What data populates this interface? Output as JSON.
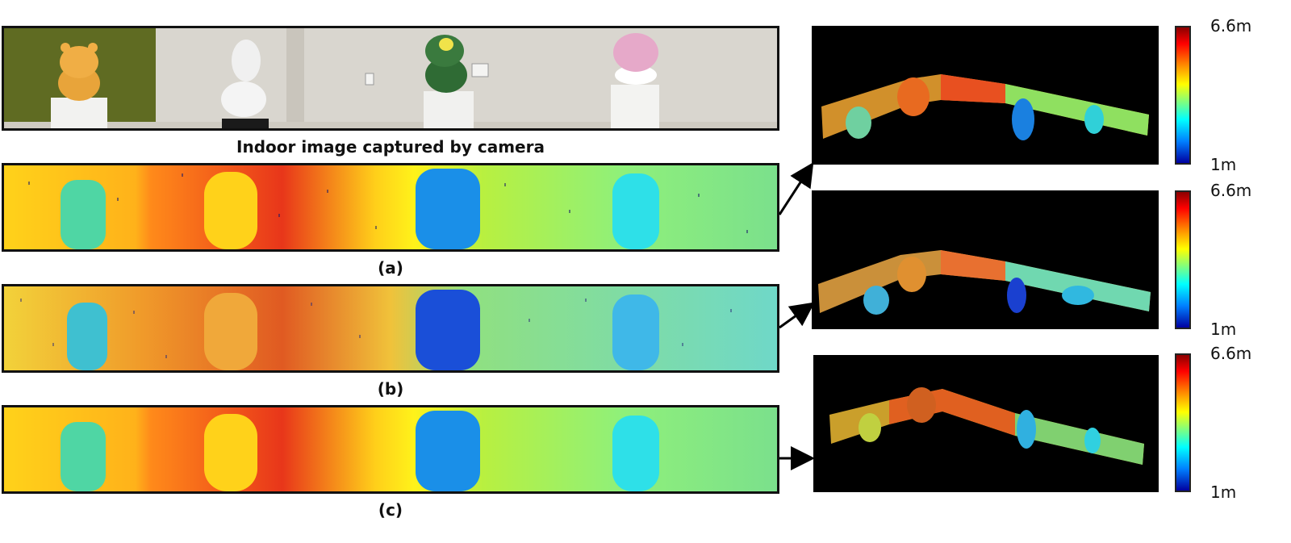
{
  "camera_caption": "Indoor image captured by camera",
  "panels": [
    {
      "id": "a",
      "label": "(a)"
    },
    {
      "id": "b",
      "label": "(b)"
    },
    {
      "id": "c",
      "label": "(c)"
    }
  ],
  "colorbar": {
    "max_label": "6.6m",
    "min_label": "1m"
  },
  "colors": {
    "wall_green": "#5f6b22",
    "wall_gray": "#d8d5cc",
    "depth_far": "#e83010",
    "depth_mid": "#ffe600",
    "depth_near": "#0a7be0"
  }
}
